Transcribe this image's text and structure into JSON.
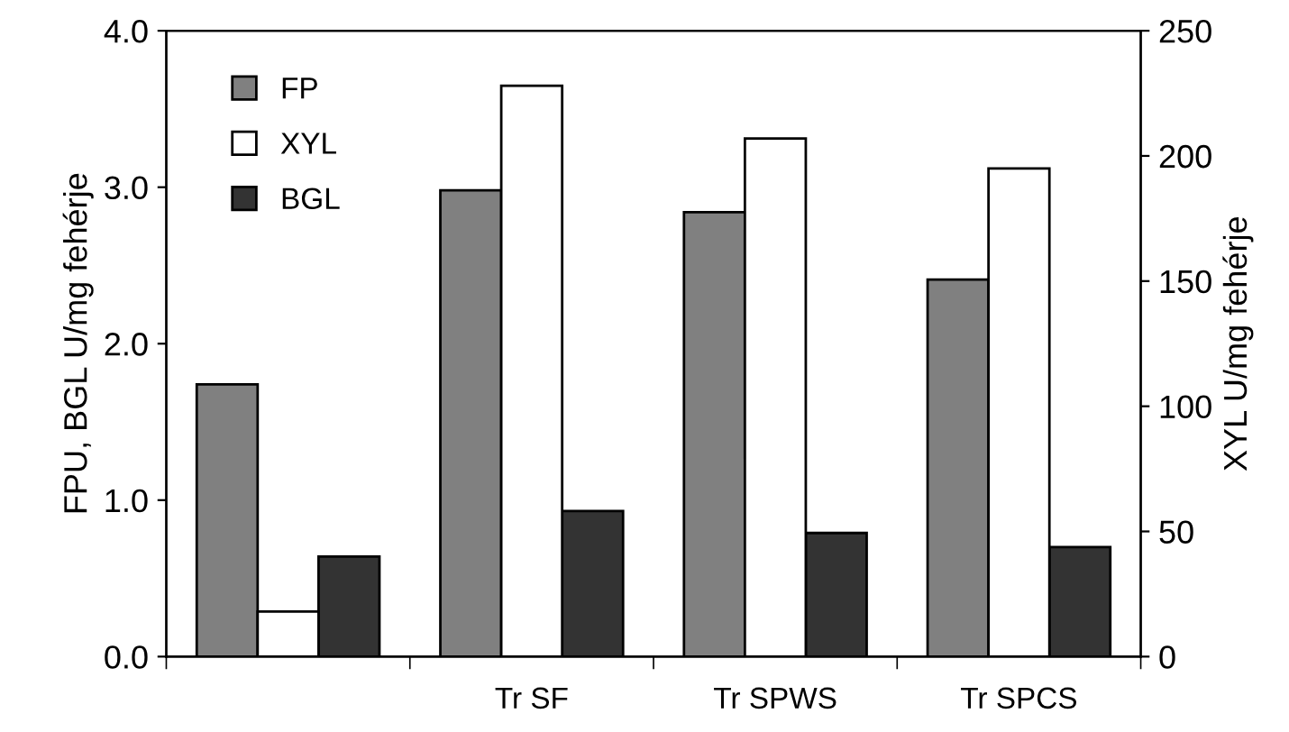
{
  "chart_data": {
    "type": "bar",
    "categories": [
      null,
      "Tr SF",
      "Tr SPWS",
      "Tr SPCS"
    ],
    "series": [
      {
        "name": "FP",
        "color": "#808080",
        "values": [
          1.74,
          2.98,
          2.84,
          2.41
        ]
      },
      {
        "name": "XYL",
        "color": "#ffffff",
        "axis": "y2",
        "values": [
          18,
          228,
          207,
          195
        ]
      },
      {
        "name": "BGL",
        "color": "#333333",
        "values": [
          0.64,
          0.93,
          0.79,
          0.7
        ]
      }
    ],
    "ylabel": "FPU, BGL U/mg fehérje",
    "y2label": "XYL U/mg fehérje",
    "ylim": [
      0,
      4
    ],
    "yticks": [
      {
        "value": 0,
        "label": "0.0"
      },
      {
        "value": 1,
        "label": "1.0"
      },
      {
        "value": 2,
        "label": "2.0"
      },
      {
        "value": 3,
        "label": "3.0"
      },
      {
        "value": 4,
        "label": "4.0"
      }
    ],
    "y2lim": [
      0,
      250
    ],
    "y2ticks": [
      0,
      50,
      100,
      150,
      200,
      250
    ],
    "legend": "top left",
    "grid": false
  }
}
